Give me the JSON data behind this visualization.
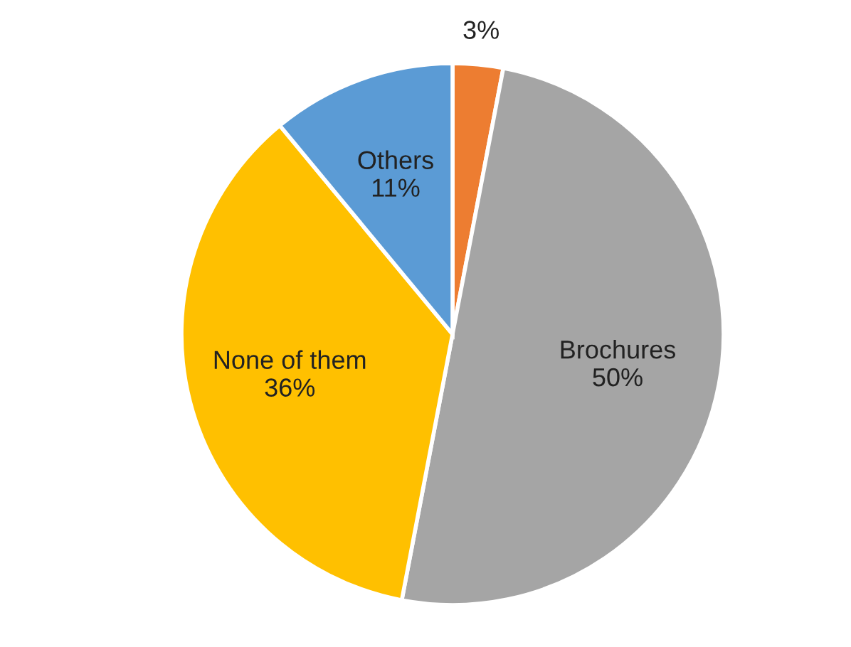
{
  "chart_data": {
    "type": "pie",
    "categories": [
      null,
      "Brochures",
      "None of them",
      "Others"
    ],
    "values": [
      3,
      50,
      36,
      11
    ],
    "colors": [
      "#ed7d31",
      "#a5a5a5",
      "#ffc000",
      "#5b9bd5"
    ],
    "value_labels": [
      "3%",
      "50%",
      "36%",
      "11%"
    ],
    "legend": false
  }
}
